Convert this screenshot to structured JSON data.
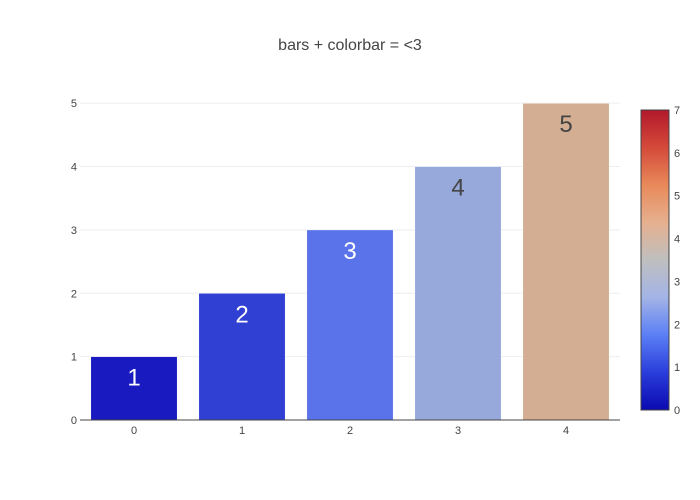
{
  "chart_data": {
    "type": "bar",
    "title": "bars + colorbar = <3",
    "xlabel": "",
    "ylabel": "",
    "categories": [
      "0",
      "1",
      "2",
      "3",
      "4"
    ],
    "values": [
      1,
      2,
      3,
      4,
      5
    ],
    "data_labels": [
      "1",
      "2",
      "3",
      "4",
      "5"
    ],
    "bar_colors": [
      "#1a1ac1",
      "#3040d2",
      "#5a72ea",
      "#97a8db",
      "#d4ae92"
    ],
    "ylim": [
      0,
      5.05
    ],
    "y_ticks": [
      "0",
      "1",
      "2",
      "3",
      "4",
      "5"
    ],
    "grid": true,
    "colorbar": {
      "range": [
        0,
        7
      ],
      "ticks": [
        "0",
        "1",
        "2",
        "3",
        "4",
        "5",
        "6",
        "7"
      ],
      "colors": [
        "#0a0ab0",
        "#2a3ddb",
        "#5b7ff5",
        "#a3b4e6",
        "#bfbfbf",
        "#e6b08f",
        "#e8895a",
        "#d44a3a",
        "#b2182b"
      ]
    }
  }
}
